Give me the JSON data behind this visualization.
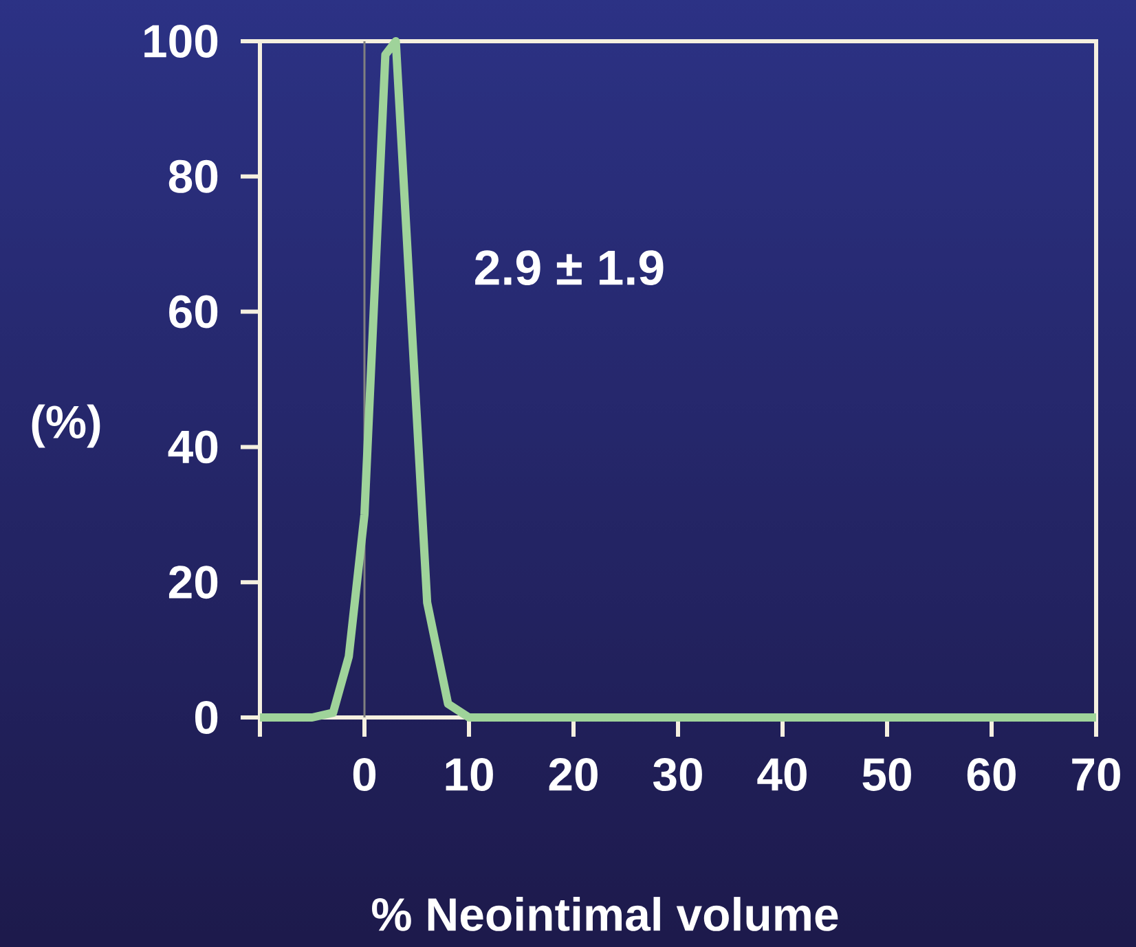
{
  "chart_data": {
    "type": "line",
    "xlabel": "% Neointimal volume",
    "ylabel": "(%)",
    "annotations": [
      "2.9 ± 1.9"
    ],
    "x": [
      -10,
      -5,
      -3,
      -1.5,
      0,
      2,
      3,
      6,
      8,
      10,
      70
    ],
    "series": [
      {
        "color": "#9fd39a",
        "values": [
          0,
          0,
          0.7,
          9,
          30,
          98,
          100,
          17,
          2,
          0,
          0
        ]
      }
    ],
    "marker": "none",
    "xlim": [
      -10,
      70
    ],
    "xticks": [
      {
        "value": -10,
        "label": null
      },
      0,
      10,
      20,
      30,
      40,
      50,
      60,
      70
    ],
    "ylim": [
      0,
      100
    ],
    "yticks": [
      0,
      20,
      40,
      60,
      80,
      100
    ],
    "ref_lines": [
      {
        "axis": "x",
        "value": 0,
        "color": "#808080"
      }
    ]
  }
}
